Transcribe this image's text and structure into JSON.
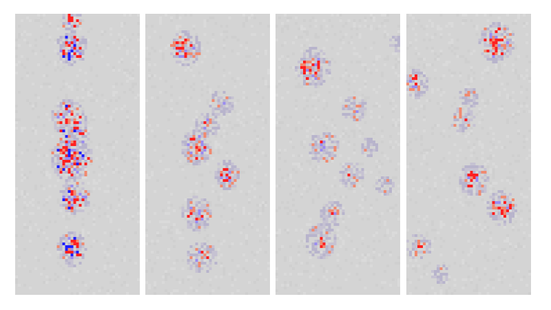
{
  "figure": {
    "panels": [
      {
        "id": "panel-1"
      },
      {
        "id": "panel-2"
      },
      {
        "id": "panel-3"
      },
      {
        "id": "panel-4"
      }
    ],
    "colors": {
      "background": "#d4d4d4",
      "halo": "#b8b4cc",
      "positive": "#ff2020",
      "positive_light": "#f08a70",
      "negative": "#2020ff",
      "negative_light": "#9a8cf0"
    }
  }
}
